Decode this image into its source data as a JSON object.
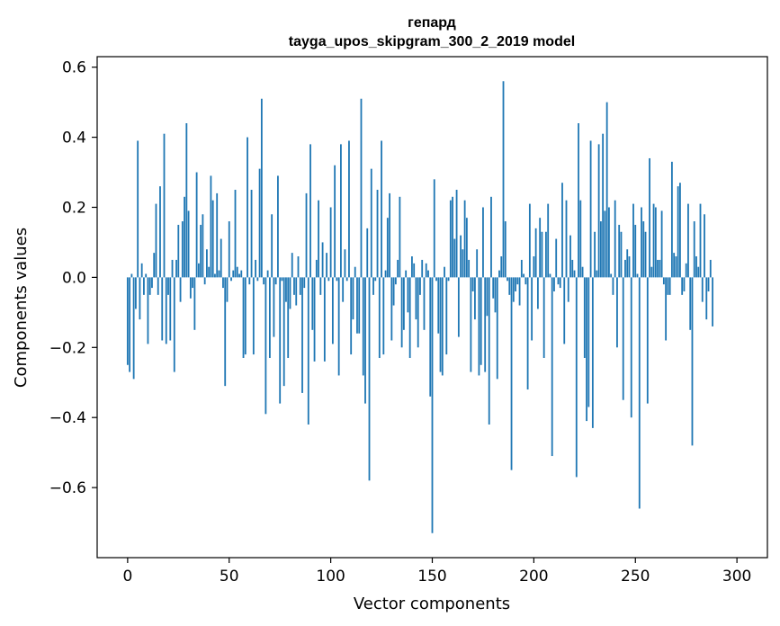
{
  "chart_data": {
    "type": "bar",
    "title": "гепард",
    "subtitle": "tayga_upos_skipgram_300_2_2019 model",
    "xlabel": "Vector components",
    "ylabel": "Components values",
    "xlim": [
      -15,
      315
    ],
    "ylim": [
      -0.8,
      0.63
    ],
    "xticks": [
      0,
      50,
      100,
      150,
      200,
      250,
      300
    ],
    "yticks": [
      -0.6,
      -0.4,
      -0.2,
      0.0,
      0.2,
      0.4,
      0.6
    ],
    "ytick_labels": [
      "−0.6",
      "−0.4",
      "−0.2",
      "0.0",
      "0.2",
      "0.4",
      "0.6"
    ],
    "bar_color": "#1f77b4",
    "grid": false,
    "values": [
      -0.25,
      -0.27,
      0.01,
      -0.29,
      -0.09,
      0.39,
      -0.12,
      0.04,
      -0.05,
      0.01,
      -0.19,
      -0.05,
      -0.03,
      0.07,
      0.21,
      -0.05,
      0.26,
      -0.18,
      0.41,
      -0.19,
      -0.05,
      -0.18,
      0.05,
      -0.27,
      0.05,
      0.15,
      -0.07,
      0.16,
      0.23,
      0.44,
      0.19,
      -0.06,
      -0.03,
      -0.15,
      0.3,
      0.04,
      0.15,
      0.18,
      -0.02,
      0.08,
      0.03,
      0.29,
      0.22,
      0.01,
      0.24,
      0.02,
      0.11,
      -0.03,
      -0.31,
      -0.07,
      0.16,
      -0.01,
      0.02,
      0.25,
      0.03,
      0.01,
      0.02,
      -0.23,
      -0.22,
      0.4,
      -0.02,
      0.25,
      -0.22,
      0.05,
      -0.01,
      0.31,
      0.51,
      -0.02,
      -0.39,
      0.02,
      -0.23,
      0.18,
      -0.17,
      -0.02,
      0.29,
      -0.36,
      -0.01,
      -0.31,
      -0.07,
      -0.23,
      -0.09,
      0.07,
      -0.05,
      -0.08,
      0.06,
      -0.05,
      -0.33,
      -0.03,
      0.24,
      -0.42,
      0.38,
      -0.15,
      -0.24,
      0.05,
      0.22,
      -0.05,
      0.1,
      -0.24,
      0.07,
      -0.01,
      0.2,
      -0.19,
      0.32,
      -0.01,
      -0.28,
      0.38,
      -0.07,
      0.08,
      -0.01,
      0.39,
      -0.22,
      -0.12,
      0.03,
      -0.16,
      -0.16,
      0.51,
      -0.28,
      -0.36,
      0.14,
      -0.58,
      0.31,
      -0.05,
      -0.01,
      0.25,
      -0.23,
      0.39,
      -0.22,
      0.02,
      0.17,
      0.24,
      -0.18,
      -0.08,
      -0.02,
      0.05,
      0.23,
      -0.2,
      -0.15,
      0.02,
      -0.1,
      -0.23,
      0.06,
      0.04,
      -0.12,
      -0.2,
      -0.05,
      0.05,
      -0.15,
      0.04,
      0.02,
      -0.34,
      -0.73,
      0.28,
      -0.01,
      -0.16,
      -0.27,
      -0.28,
      0.03,
      -0.22,
      -0.01,
      0.22,
      0.23,
      0.11,
      0.25,
      -0.17,
      0.12,
      0.08,
      0.22,
      0.17,
      0.05,
      -0.27,
      -0.04,
      -0.12,
      0.08,
      -0.28,
      -0.25,
      0.2,
      -0.27,
      -0.11,
      -0.42,
      0.23,
      -0.06,
      -0.1,
      -0.29,
      0.02,
      0.06,
      0.56,
      0.16,
      -0.01,
      -0.05,
      -0.55,
      -0.07,
      -0.04,
      -0.02,
      -0.08,
      0.05,
      0.01,
      -0.02,
      -0.32,
      0.21,
      -0.18,
      0.06,
      0.14,
      -0.09,
      0.17,
      0.13,
      -0.23,
      0.13,
      0.21,
      0.01,
      -0.51,
      -0.04,
      0.11,
      -0.02,
      -0.03,
      0.27,
      -0.19,
      0.22,
      -0.07,
      0.12,
      0.05,
      0.02,
      -0.57,
      0.44,
      0.22,
      0.03,
      -0.23,
      -0.41,
      -0.37,
      0.39,
      -0.43,
      0.13,
      0.02,
      0.38,
      0.16,
      0.41,
      0.19,
      0.5,
      0.2,
      0.01,
      -0.05,
      0.22,
      -0.2,
      0.15,
      0.13,
      -0.35,
      0.05,
      0.08,
      0.06,
      -0.4,
      0.21,
      0.15,
      0.01,
      -0.66,
      0.2,
      0.16,
      0.13,
      -0.36,
      0.34,
      0.03,
      0.21,
      0.2,
      0.05,
      0.05,
      0.19,
      -0.02,
      -0.18,
      -0.05,
      -0.05,
      0.33,
      0.07,
      0.06,
      0.26,
      0.27,
      -0.05,
      -0.04,
      0.04,
      0.21,
      -0.15,
      -0.48,
      0.16,
      0.06,
      0.03,
      0.21,
      -0.07,
      0.18,
      -0.12,
      -0.04,
      0.05,
      -0.14
    ]
  }
}
